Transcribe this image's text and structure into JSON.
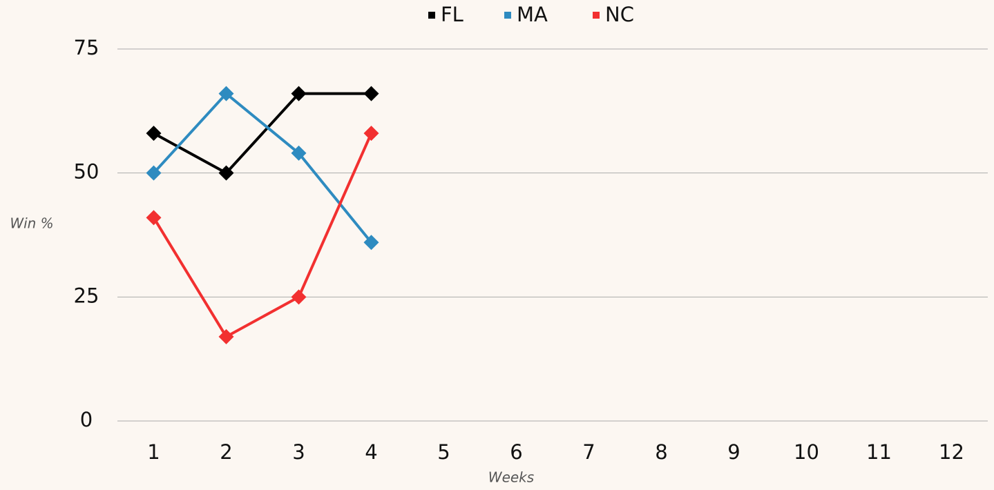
{
  "chart_data": {
    "type": "line",
    "categories": [
      "1",
      "2",
      "3",
      "4",
      "5",
      "6",
      "7",
      "8",
      "9",
      "10",
      "11",
      "12"
    ],
    "series": [
      {
        "name": "FL",
        "color": "#000000",
        "values": [
          58,
          50,
          66,
          66,
          null,
          null,
          null,
          null,
          null,
          null,
          null,
          null
        ]
      },
      {
        "name": "MA",
        "color": "#2e8bc0",
        "values": [
          50,
          66,
          54,
          36,
          null,
          null,
          null,
          null,
          null,
          null,
          null,
          null
        ]
      },
      {
        "name": "NC",
        "color": "#f23030",
        "values": [
          41,
          17,
          25,
          58,
          null,
          null,
          null,
          null,
          null,
          null,
          null,
          null
        ]
      }
    ],
    "ylim": [
      0,
      75
    ],
    "yticks": [
      0,
      25,
      50,
      75
    ],
    "grid": true,
    "y_label": "Win %",
    "x_label": "Weeks",
    "legend": "top"
  }
}
